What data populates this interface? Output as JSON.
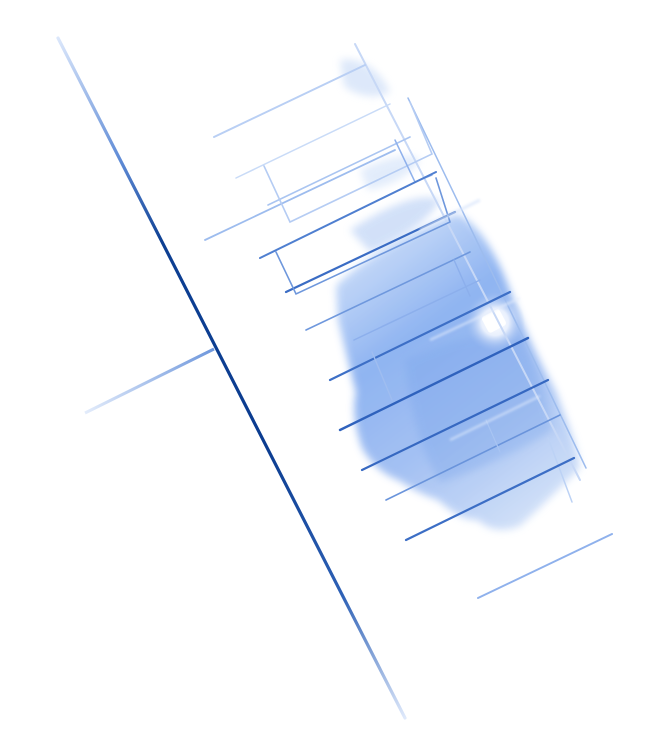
{
  "image": {
    "background_color": "#ffffff",
    "ink_color": "#1a4fa0",
    "wash_color": "#4f86e6",
    "pale_color": "#bcd2f5"
  }
}
